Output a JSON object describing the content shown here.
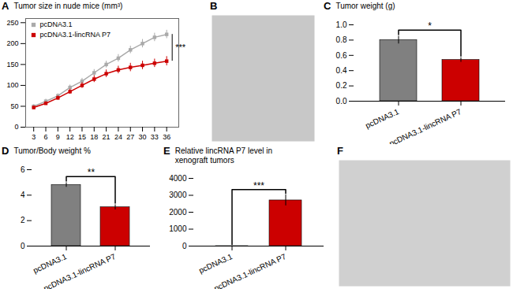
{
  "chart_data": [
    {
      "type": "line",
      "title": "A",
      "ylabel": "Tumor size in nude mice (mm³)",
      "x": [
        3,
        6,
        9,
        12,
        15,
        18,
        21,
        24,
        27,
        30,
        33,
        36
      ],
      "xlim": [
        1,
        39
      ],
      "xticks": [
        3,
        6,
        9,
        12,
        15,
        18,
        21,
        24,
        27,
        30,
        33,
        36
      ],
      "ylim": [
        0,
        260
      ],
      "yticks": [
        0,
        50,
        100,
        150,
        200,
        250
      ],
      "legend": "upper left",
      "annotations": [
        "***"
      ],
      "series": [
        {
          "name": "pcDNA3.1",
          "color": "#aaaaaa",
          "marker": "square",
          "values": [
            50,
            62,
            75,
            95,
            110,
            130,
            150,
            165,
            185,
            200,
            215,
            222
          ],
          "errors": [
            4,
            5,
            5,
            6,
            7,
            8,
            8,
            9,
            9,
            10,
            10,
            10
          ]
        },
        {
          "name": "pcDNA3.1-lincRNA P7",
          "color": "#cc0000",
          "marker": "square",
          "values": [
            47,
            57,
            70,
            85,
            100,
            115,
            128,
            137,
            143,
            148,
            153,
            158
          ],
          "errors": [
            4,
            4,
            5,
            6,
            7,
            8,
            9,
            9,
            10,
            10,
            10,
            11
          ]
        }
      ]
    },
    {
      "type": "image",
      "title": "B",
      "color": "#c8c8c8"
    },
    {
      "type": "bar",
      "title": "C",
      "ylabel": "Tumor weight (g)",
      "categories": [
        "pcDNA3.1",
        "pcDNA3.1-lincRNA P7"
      ],
      "values": [
        0.8,
        0.54
      ],
      "errors": [
        0.05,
        0.03
      ],
      "colors": [
        "#808080",
        "#cc0000"
      ],
      "ylim": [
        0,
        1.0
      ],
      "yticks": [
        {
          "value": 0,
          "label": "0.0"
        },
        0.2,
        0.4,
        0.6,
        0.8,
        {
          "value": 1,
          "label": "1.0"
        }
      ],
      "annotations": [
        "*"
      ]
    },
    {
      "type": "bar",
      "title": "D",
      "ylabel": "Tumor/Body weight %",
      "categories": [
        "pcDNA3.1",
        "pcDNA3.1-lincRNA P7"
      ],
      "values": [
        4.8,
        3.05
      ],
      "errors": [
        0.18,
        0.2
      ],
      "colors": [
        "#808080",
        "#cc0000"
      ],
      "ylim": [
        0,
        6
      ],
      "yticks": [
        0,
        2,
        4,
        6
      ],
      "annotations": [
        "**"
      ]
    },
    {
      "type": "bar",
      "title": "E",
      "ylabel": "Relative lincRNA P7 level in\nxenograft tumors",
      "categories": [
        "pcDNA3.1",
        "pcDNA3.1-lincRNA P7"
      ],
      "values": [
        1.0,
        2700
      ],
      "errors": [
        0.12,
        320
      ],
      "colors": [
        "#008080",
        "#cc0000"
      ],
      "ylim": [
        0,
        4000
      ],
      "yticks": [
        0,
        1000,
        2000,
        3000,
        4000
      ],
      "annotations": [
        "***"
      ]
    },
    {
      "type": "image",
      "title": "F",
      "color": "#d0d0d0"
    }
  ]
}
